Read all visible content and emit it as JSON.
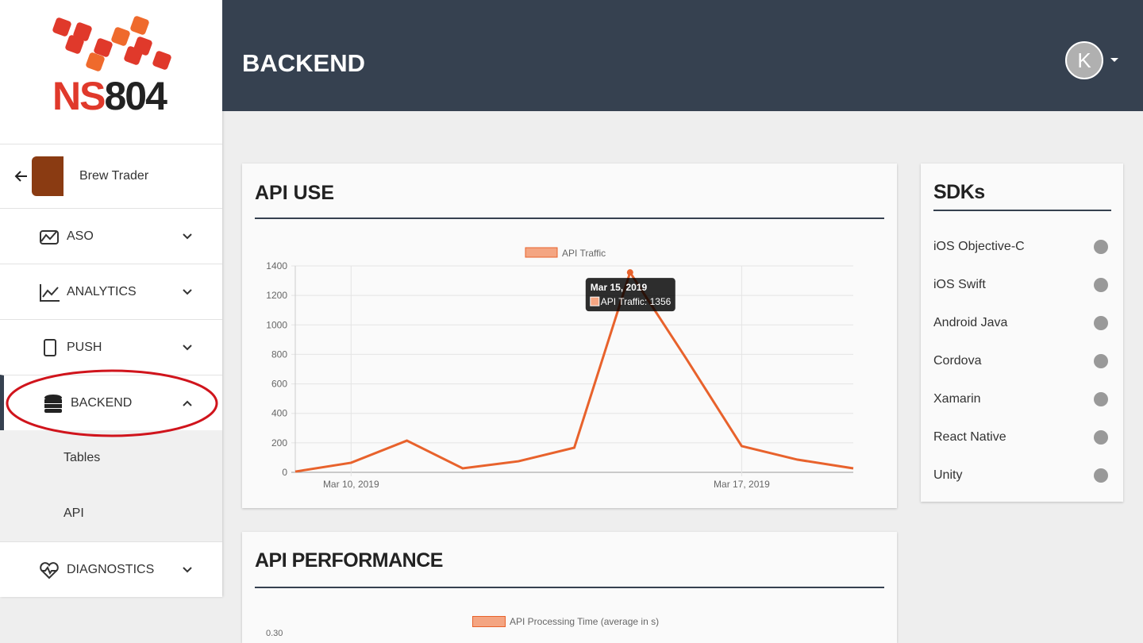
{
  "logo": {
    "text_red": "NS",
    "text_dark": "804"
  },
  "header": {
    "title": "BACKEND",
    "avatar": "K"
  },
  "sidebar": {
    "app": "Brew Trader",
    "items": [
      "ASO",
      "ANALYTICS",
      "PUSH",
      "BACKEND"
    ],
    "subitems": [
      "Tables",
      "API"
    ],
    "last": "DIAGNOSTICS"
  },
  "chart_data": {
    "type": "line",
    "title": "API USE",
    "x": [
      "2019-03-09",
      "2019-03-10",
      "2019-03-11",
      "2019-03-12",
      "2019-03-13",
      "2019-03-14",
      "2019-03-15",
      "2019-03-16",
      "2019-03-17",
      "2019-03-18",
      "2019-03-19"
    ],
    "series": [
      {
        "name": "API Traffic",
        "color": "#e8622c",
        "values": [
          5,
          65,
          215,
          27,
          75,
          167,
          1356,
          775,
          178,
          86,
          27
        ]
      }
    ],
    "xlim": [
      "2019-03-09",
      "2019-03-19"
    ],
    "xticks": [
      {
        "value": "2019-03-10",
        "label": "Mar 10, 2019"
      },
      {
        "value": "2019-03-17",
        "label": "Mar 17, 2019"
      }
    ],
    "ylim": [
      0,
      1400
    ],
    "yticks": [
      0,
      200,
      400,
      600,
      800,
      1000,
      1200,
      1400
    ],
    "grid": true,
    "legend": "top",
    "tooltip": {
      "title": "Mar 15, 2019",
      "label": "API Traffic: 1356"
    }
  },
  "sdks": {
    "title": "SDKs",
    "items": [
      "iOS Objective-C",
      "iOS Swift",
      "Android Java",
      "Cordova",
      "Xamarin",
      "React Native",
      "Unity"
    ]
  },
  "api_performance": {
    "title": "API PERFORMANCE",
    "legend": "API Processing Time (average in s)",
    "ytick_top": "0.30"
  }
}
